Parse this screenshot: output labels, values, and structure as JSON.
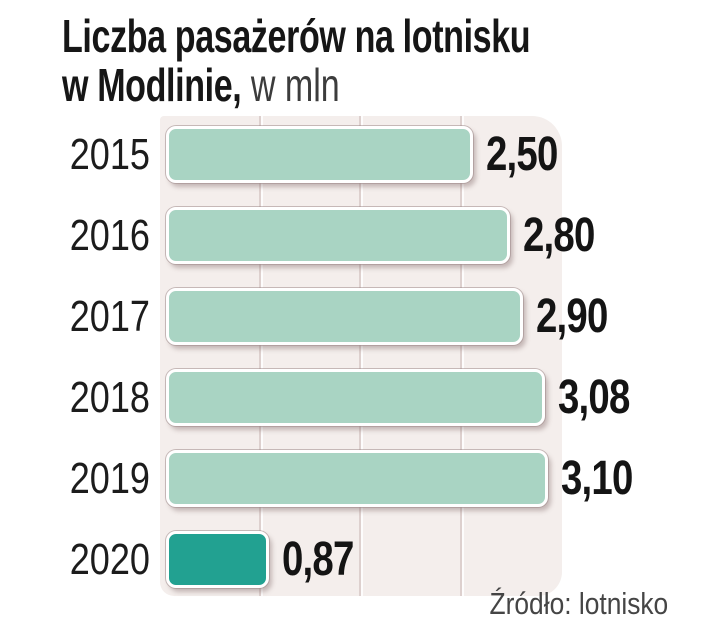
{
  "title": {
    "line1": "Liczba pasażerów na lotnisku",
    "line2_bold": "w Modlinie,",
    "line2_unit": " w mln"
  },
  "source": "Źródło: lotnisko",
  "chart_data": {
    "type": "bar",
    "orientation": "horizontal",
    "title": "Liczba pasażerów na lotnisku w Modlinie, w mln",
    "unit": "mln",
    "categories": [
      "2015",
      "2016",
      "2017",
      "2018",
      "2019",
      "2020"
    ],
    "values": [
      2.5,
      2.8,
      2.9,
      3.08,
      3.1,
      0.87
    ],
    "value_labels": [
      "2,50",
      "2,80",
      "2,90",
      "3,08",
      "3,10",
      "0,87"
    ],
    "xlim": [
      0,
      3.2
    ],
    "grid": "vertical-quarters",
    "legend": "none",
    "highlight_index": 5,
    "colors": {
      "bar": "#a9d4c3",
      "bar_highlight": "#22a191",
      "bar_border": "#ffffff",
      "plot_background": "#f4eeec",
      "gridline": "#ddd0ce",
      "text": "#161616",
      "source_text": "#454545"
    }
  }
}
